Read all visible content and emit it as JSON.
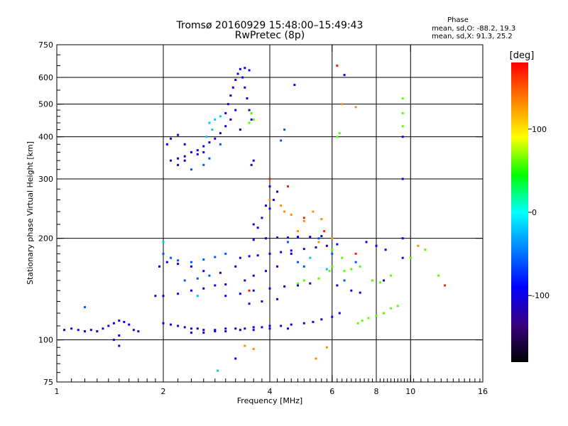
{
  "chart_data": {
    "type": "scatter",
    "title": "Tromsø 20160929 15:48:00–15:49:43",
    "subtitle": "RwPretec (8p)",
    "xlabel": "Frequency [MHz]",
    "ylabel": "Stationary phase Virtual Height [km]",
    "x_scale": "log",
    "y_scale": "log",
    "xlim": [
      1,
      16
    ],
    "ylim": [
      75,
      750
    ],
    "x_ticks": [
      1,
      2,
      4,
      6,
      8,
      10,
      16
    ],
    "x_gridlines": [
      2,
      4,
      6,
      8,
      10
    ],
    "y_ticks": [
      75,
      100,
      200,
      300,
      400,
      500,
      600,
      750
    ],
    "y_gridlines": [
      100,
      200,
      300,
      400,
      500,
      600
    ],
    "grid": true,
    "stats": {
      "heading": "Phase",
      "line1": "mean, sd,O: -88.2, 19.3",
      "line2": "mean, sd,X:  91.3, 25.2"
    },
    "colorbar": {
      "label": "[deg]",
      "min": -180,
      "max": 180,
      "ticks": [
        100,
        0,
        -100
      ],
      "tick_labels": [
        "100",
        "0",
        "-100"
      ],
      "stops": [
        "#000000",
        "#3a0080",
        "#0000ff",
        "#0080ff",
        "#00ffff",
        "#00ff00",
        "#ffff00",
        "#ff8000",
        "#ff0000"
      ]
    },
    "series": [
      {
        "phase_deg": -100,
        "points": [
          [
            1.05,
            107
          ],
          [
            1.1,
            108
          ],
          [
            1.15,
            107
          ],
          [
            1.2,
            106
          ],
          [
            1.25,
            107
          ],
          [
            1.3,
            106
          ],
          [
            1.35,
            108
          ],
          [
            1.4,
            110
          ],
          [
            1.45,
            112
          ],
          [
            1.5,
            114
          ],
          [
            1.55,
            113
          ],
          [
            1.6,
            111
          ],
          [
            1.65,
            107
          ],
          [
            1.7,
            106
          ],
          [
            2.0,
            112
          ],
          [
            2.1,
            111
          ],
          [
            2.2,
            110
          ],
          [
            2.3,
            109
          ],
          [
            2.4,
            108
          ],
          [
            2.5,
            108
          ],
          [
            2.6,
            107
          ],
          [
            2.8,
            107
          ],
          [
            3.0,
            108
          ],
          [
            3.2,
            108
          ],
          [
            3.4,
            108
          ],
          [
            3.6,
            109
          ],
          [
            3.8,
            109
          ],
          [
            4.0,
            110
          ],
          [
            4.3,
            110
          ],
          [
            4.6,
            111
          ],
          [
            5.0,
            112
          ],
          [
            5.3,
            113
          ],
          [
            5.6,
            115
          ],
          [
            6.0,
            117
          ],
          [
            6.3,
            120
          ],
          [
            2.4,
            105
          ],
          [
            2.6,
            105
          ],
          [
            2.8,
            106
          ],
          [
            3.0,
            106
          ],
          [
            3.3,
            107
          ],
          [
            3.6,
            107
          ],
          [
            4.0,
            108
          ],
          [
            4.5,
            108
          ],
          [
            1.9,
            135
          ],
          [
            2.0,
            135
          ],
          [
            2.2,
            137
          ],
          [
            2.4,
            140
          ],
          [
            2.6,
            142
          ],
          [
            2.8,
            145
          ],
          [
            3.0,
            146
          ],
          [
            1.95,
            165
          ],
          [
            2.05,
            170
          ],
          [
            2.2,
            168
          ],
          [
            2.4,
            165
          ],
          [
            2.6,
            160
          ],
          [
            2.9,
            158
          ],
          [
            3.3,
            175
          ],
          [
            3.5,
            177
          ],
          [
            3.7,
            178
          ],
          [
            4.0,
            180
          ],
          [
            4.3,
            182
          ],
          [
            4.6,
            184
          ],
          [
            5.0,
            186
          ],
          [
            5.4,
            188
          ],
          [
            5.8,
            190
          ],
          [
            6.2,
            192
          ],
          [
            3.6,
            198
          ],
          [
            3.9,
            200
          ],
          [
            4.2,
            201
          ],
          [
            4.5,
            201
          ],
          [
            4.8,
            202
          ],
          [
            5.2,
            202
          ],
          [
            5.6,
            203
          ],
          [
            3.0,
            135
          ],
          [
            3.3,
            137
          ],
          [
            3.6,
            140
          ],
          [
            4.0,
            142
          ],
          [
            4.4,
            144
          ],
          [
            4.8,
            145
          ],
          [
            5.2,
            147
          ],
          [
            3.6,
            220
          ],
          [
            3.8,
            230
          ],
          [
            4.0,
            245
          ],
          [
            4.1,
            260
          ],
          [
            4.2,
            275
          ],
          [
            4.0,
            285
          ],
          [
            3.9,
            250
          ],
          [
            3.7,
            215
          ],
          [
            3.4,
            150
          ],
          [
            3.6,
            155
          ],
          [
            3.9,
            160
          ],
          [
            4.2,
            165
          ],
          [
            3.2,
            165
          ],
          [
            3.5,
            128
          ],
          [
            3.8,
            130
          ],
          [
            4.2,
            132
          ],
          [
            2.1,
            340
          ],
          [
            2.2,
            345
          ],
          [
            2.3,
            350
          ],
          [
            2.4,
            360
          ],
          [
            2.5,
            365
          ],
          [
            2.6,
            375
          ],
          [
            2.7,
            385
          ],
          [
            2.8,
            395
          ],
          [
            2.9,
            410
          ],
          [
            3.0,
            430
          ],
          [
            2.05,
            380
          ],
          [
            2.1,
            395
          ],
          [
            2.2,
            405
          ],
          [
            2.3,
            380
          ],
          [
            2.5,
            355
          ],
          [
            2.6,
            360
          ],
          [
            2.2,
            330
          ],
          [
            2.3,
            340
          ],
          [
            3.0,
            470
          ],
          [
            3.05,
            500
          ],
          [
            3.1,
            530
          ],
          [
            3.15,
            560
          ],
          [
            3.2,
            590
          ],
          [
            3.25,
            615
          ],
          [
            3.3,
            635
          ],
          [
            3.1,
            450
          ],
          [
            3.2,
            480
          ],
          [
            3.35,
            600
          ],
          [
            3.4,
            560
          ],
          [
            3.45,
            520
          ],
          [
            3.5,
            480
          ],
          [
            3.55,
            450
          ],
          [
            3.3,
            420
          ],
          [
            3.4,
            640
          ],
          [
            3.5,
            630
          ],
          [
            3.55,
            330
          ],
          [
            3.6,
            340
          ],
          [
            4.7,
            570
          ],
          [
            6.5,
            610
          ],
          [
            9.5,
            175
          ],
          [
            9.5,
            400
          ],
          [
            9.5,
            300
          ],
          [
            9.5,
            200
          ],
          [
            7.5,
            195
          ],
          [
            8.0,
            190
          ],
          [
            8.5,
            185
          ],
          [
            6.2,
            145
          ],
          [
            6.8,
            140
          ],
          [
            7.2,
            138
          ],
          [
            8.4,
            150
          ],
          [
            1.45,
            100
          ],
          [
            1.5,
            103
          ],
          [
            1.5,
            96
          ],
          [
            3.2,
            88
          ],
          [
            4.6,
            180
          ]
        ]
      },
      {
        "phase_deg": -60,
        "points": [
          [
            2.0,
            180
          ],
          [
            2.1,
            175
          ],
          [
            2.2,
            172
          ],
          [
            2.4,
            170
          ],
          [
            2.6,
            173
          ],
          [
            2.8,
            176
          ],
          [
            3.0,
            180
          ],
          [
            2.3,
            150
          ],
          [
            2.5,
            152
          ],
          [
            2.7,
            155
          ],
          [
            4.5,
            195
          ],
          [
            4.8,
            170
          ],
          [
            5.0,
            165
          ],
          [
            5.5,
            200
          ],
          [
            6.0,
            180
          ],
          [
            6.5,
            150
          ],
          [
            7.0,
            170
          ],
          [
            2.4,
            320
          ],
          [
            2.6,
            330
          ],
          [
            2.7,
            345
          ],
          [
            2.9,
            380
          ],
          [
            1.2,
            125
          ],
          [
            4.4,
            420
          ],
          [
            4.3,
            390
          ]
        ]
      },
      {
        "phase_deg": -20,
        "points": [
          [
            2.0,
            195
          ],
          [
            2.7,
            440
          ],
          [
            2.8,
            450
          ],
          [
            2.9,
            460
          ],
          [
            2.75,
            420
          ],
          [
            2.65,
            400
          ],
          [
            5.2,
            175
          ],
          [
            5.8,
            162
          ],
          [
            2.5,
            135
          ],
          [
            2.85,
            81
          ]
        ]
      },
      {
        "phase_deg": 60,
        "points": [
          [
            6.0,
            185
          ],
          [
            6.4,
            175
          ],
          [
            6.8,
            162
          ],
          [
            7.2,
            165
          ],
          [
            7.8,
            150
          ],
          [
            8.2,
            148
          ],
          [
            8.8,
            155
          ],
          [
            10.0,
            175
          ],
          [
            11.0,
            185
          ],
          [
            12.0,
            155
          ],
          [
            4.8,
            147
          ],
          [
            5.0,
            150
          ],
          [
            5.5,
            152
          ],
          [
            5.9,
            160
          ],
          [
            6.0,
            165
          ],
          [
            6.5,
            160
          ],
          [
            7.1,
            112
          ],
          [
            7.3,
            114
          ],
          [
            7.6,
            116
          ],
          [
            8.0,
            118
          ],
          [
            8.4,
            120
          ],
          [
            8.8,
            124
          ],
          [
            9.2,
            126
          ],
          [
            3.5,
            440
          ],
          [
            3.6,
            450
          ],
          [
            3.55,
            470
          ],
          [
            9.5,
            520
          ],
          [
            9.5,
            470
          ],
          [
            9.5,
            430
          ],
          [
            6.2,
            400
          ],
          [
            6.3,
            410
          ]
        ]
      },
      {
        "phase_deg": 130,
        "points": [
          [
            4.0,
            260
          ],
          [
            4.3,
            250
          ],
          [
            4.6,
            235
          ],
          [
            5.0,
            225
          ],
          [
            5.3,
            240
          ],
          [
            5.6,
            228
          ],
          [
            4.8,
            210
          ],
          [
            5.5,
            195
          ],
          [
            6.0,
            200
          ],
          [
            5.4,
            88
          ],
          [
            5.8,
            95
          ],
          [
            3.4,
            96
          ],
          [
            3.6,
            94
          ],
          [
            4.4,
            240
          ],
          [
            6.4,
            500
          ],
          [
            7.0,
            490
          ],
          [
            10.5,
            190
          ]
        ]
      },
      {
        "phase_deg": 170,
        "points": [
          [
            4.0,
            300
          ],
          [
            4.5,
            285
          ],
          [
            5.0,
            230
          ],
          [
            5.7,
            210
          ],
          [
            6.2,
            650
          ],
          [
            7.0,
            180
          ],
          [
            12.5,
            145
          ],
          [
            3.5,
            140
          ]
        ]
      }
    ]
  }
}
